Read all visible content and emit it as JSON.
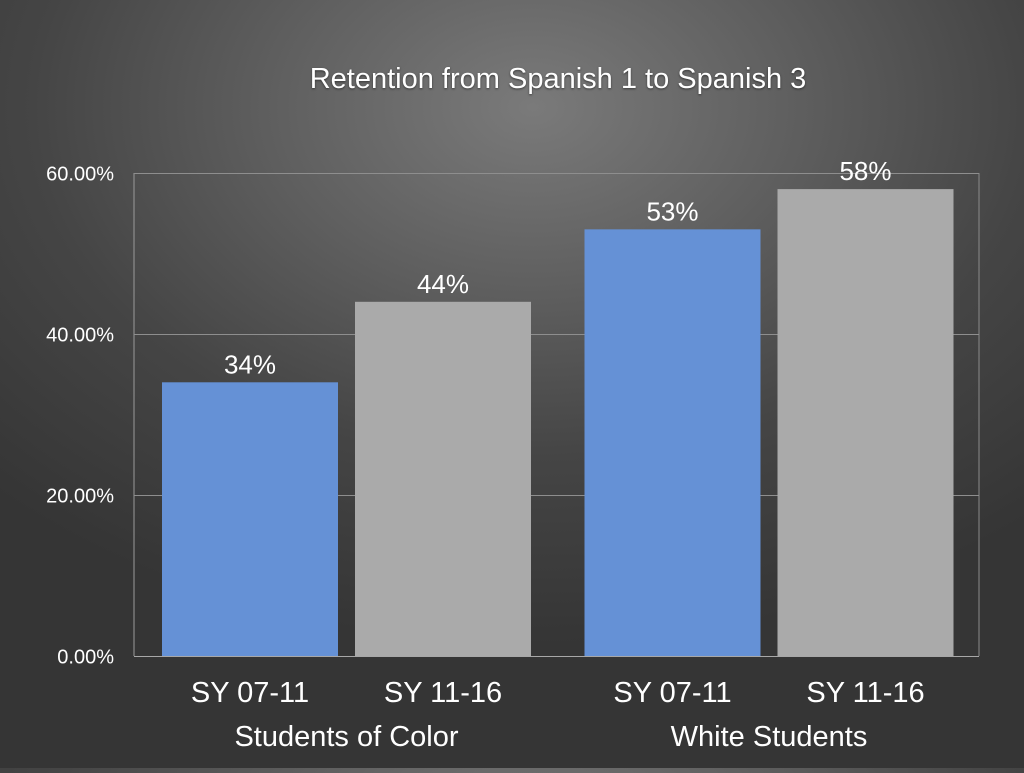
{
  "chart_data": {
    "type": "bar",
    "title": "Retention from Spanish 1 to Spanish 3",
    "xlabel": "",
    "ylabel": "",
    "ylim": [
      0,
      60
    ],
    "y_ticks": [
      {
        "value": 0,
        "label": "0.00%"
      },
      {
        "value": 20,
        "label": "20.00%"
      },
      {
        "value": 40,
        "label": "40.00%"
      },
      {
        "value": 60,
        "label": "60.00%"
      }
    ],
    "groups": [
      "Students of Color",
      "White Students"
    ],
    "sub_categories": [
      "SY 07-11",
      "SY 11-16"
    ],
    "series": [
      {
        "name": "SY 07-11",
        "color": "#6591d6",
        "values": [
          34,
          53
        ],
        "labels": [
          "34%",
          "53%"
        ]
      },
      {
        "name": "SY 11-16",
        "color": "#aaaaaa",
        "values": [
          44,
          58
        ],
        "labels": [
          "44%",
          "58%"
        ]
      }
    ],
    "grid": true,
    "legend": "none"
  }
}
